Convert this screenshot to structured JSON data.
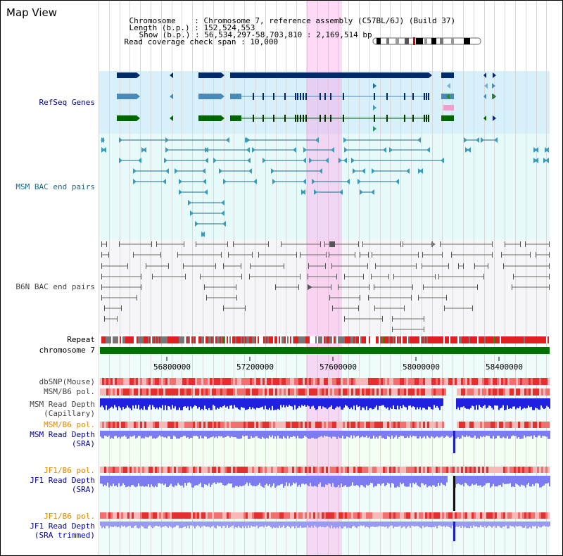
{
  "header": {
    "title": "Map View",
    "chromosome_key": "Chromosome",
    "chromosome_value": "Chromosome 7, reference assembly (C57BL/6J) (Build 37)",
    "length_key": "Length (b.p.)",
    "length_value": "152,524,553",
    "show_key": "Show (b.p.)",
    "show_value": "56,534,297-58,703,810 : 2,169,514 bp",
    "coverage_key": "Read coverage check span",
    "coverage_value": "10,000"
  },
  "tracks": {
    "refseq": "RefSeq Genes",
    "msm_bac": "MSM BAC end pairs",
    "b6n_bac": "B6N BAC end pairs",
    "repeat": "Repeat",
    "chromosome": "chromosome 7",
    "dbsnp": "dbSNP(Mouse)",
    "msm_b6_pol": "MSM/B6 pol.",
    "msm_read_depth_cap_1": "MSM Read Depth",
    "msm_read_depth_cap_2": "(Capillary)",
    "msm_b6_pol_2": "MSM/B6 pol.",
    "msm_read_depth_sra_1": "MSM Read Depth",
    "msm_read_depth_sra_2": "(SRA)",
    "jf1_b6_pol": "JF1/B6 pol.",
    "jf1_read_depth_sra_1": "JF1 Read Depth",
    "jf1_read_depth_sra_2": "(SRA)",
    "jf1_b6_pol_2": "JF1/B6 pol.",
    "jf1_read_depth_trim_1": "JF1 Read Depth",
    "jf1_read_depth_trim_2": "(SRA trimmed)"
  },
  "axis": {
    "ticks": [
      "56800000",
      "57200000",
      "57600000",
      "58000000",
      "58400000"
    ]
  },
  "colors": {
    "refseq_navy": "#002a6a",
    "refseq_steel": "#4a8ab8",
    "refseq_green": "#006600",
    "bac_teal": "#1a6b8a",
    "b6n_gray": "#666666",
    "chrom_green": "#007000",
    "depth_blue": "#2020e0",
    "depth_lavender": "#7c7cf0",
    "highlight": "#ff96e6"
  }
}
